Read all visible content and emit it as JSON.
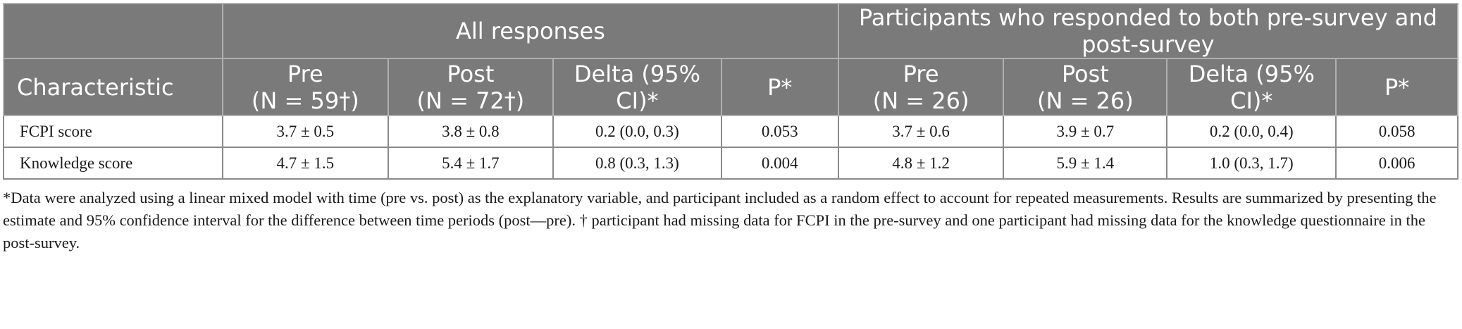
{
  "table": {
    "group_headers": [
      {
        "label": ""
      },
      {
        "label": "All responses"
      },
      {
        "label": "Participants who responded to both pre-survey and post-survey"
      }
    ],
    "column_headers": [
      {
        "lines": [
          "Characteristic"
        ]
      },
      {
        "lines": [
          "Pre",
          "(N = 59†)"
        ]
      },
      {
        "lines": [
          "Post",
          "(N = 72†)"
        ]
      },
      {
        "lines": [
          "Delta (95%",
          "CI)*"
        ]
      },
      {
        "lines": [
          "P*"
        ]
      },
      {
        "lines": [
          "Pre",
          "(N = 26)"
        ]
      },
      {
        "lines": [
          "Post",
          "(N = 26)"
        ]
      },
      {
        "lines": [
          "Delta (95%",
          "CI)*"
        ]
      },
      {
        "lines": [
          "P*"
        ]
      }
    ],
    "rows": [
      {
        "cells": [
          "FCPI score",
          "3.7 ± 0.5",
          "3.8 ± 0.8",
          "0.2 (0.0, 0.3)",
          "0.053",
          "3.7 ± 0.6",
          "3.9 ± 0.7",
          "0.2 (0.0, 0.4)",
          "0.058"
        ]
      },
      {
        "cells": [
          "Knowledge score",
          "4.7 ± 1.5",
          "5.4 ± 1.7",
          "0.8 (0.3, 1.3)",
          "0.004",
          "4.8 ± 1.2",
          "5.9 ± 1.4",
          "1.0 (0.3, 1.7)",
          "0.006"
        ]
      }
    ]
  },
  "footnote": "*Data were analyzed using a linear mixed model with time (pre vs. post) as the explanatory variable, and participant included as a random effect to account for repeated measurements. Results are summarized by presenting the estimate and 95% confidence interval for the difference between time periods (post—pre). † participant had missing data for FCPI in the pre-survey and one participant had missing data for the knowledge questionnaire in the post-survey."
}
